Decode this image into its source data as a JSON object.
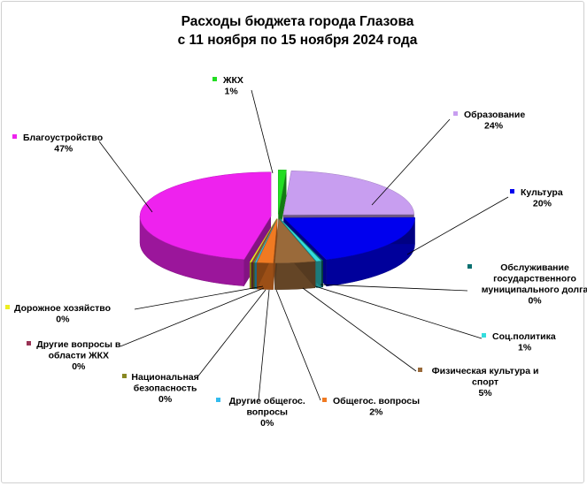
{
  "chart_data": {
    "type": "pie",
    "title": "Расходы бюджета города Глазова",
    "subtitle": "с 11 ноября по 15 ноября 2024 года",
    "slices": [
      {
        "label": [
          "ЖКХ"
        ],
        "pct": "1%",
        "value": 1,
        "color": "#22dd22"
      },
      {
        "label": [
          "Образование"
        ],
        "pct": "24%",
        "value": 24,
        "color": "#c89ef0"
      },
      {
        "label": [
          "Культура"
        ],
        "pct": "20%",
        "value": 20,
        "color": "#0000ee"
      },
      {
        "label": [
          "Обслуживание",
          "государственного",
          "муниципального  долга"
        ],
        "pct": "0%",
        "value": 0.2,
        "color": "#0a7070"
      },
      {
        "label": [
          "Соц.политика"
        ],
        "pct": "1%",
        "value": 0.6,
        "color": "#33dddd"
      },
      {
        "label": [
          "Физическая культура и",
          "спорт"
        ],
        "pct": "5%",
        "value": 5,
        "color": "#9a6a3a"
      },
      {
        "label": [
          "Общегос. вопросы"
        ],
        "pct": "2%",
        "value": 2,
        "color": "#f07a22"
      },
      {
        "label": [
          "Другие общегос.",
          "вопросы"
        ],
        "pct": "0%",
        "value": 0.2,
        "color": "#33bbee"
      },
      {
        "label": [
          "Национальная",
          "безопасность"
        ],
        "pct": "0%",
        "value": 0.2,
        "color": "#888822"
      },
      {
        "label": [
          "Другие вопросы в",
          "области ЖКХ"
        ],
        "pct": "0%",
        "value": 0.2,
        "color": "#993355"
      },
      {
        "label": [
          "Дорожное хозяйство"
        ],
        "pct": "0%",
        "value": 0.2,
        "color": "#eeee22"
      },
      {
        "label": [
          "Благоустройство"
        ],
        "pct": "47%",
        "value": 47,
        "color": "#ee22ee"
      }
    ],
    "legend": "none"
  }
}
